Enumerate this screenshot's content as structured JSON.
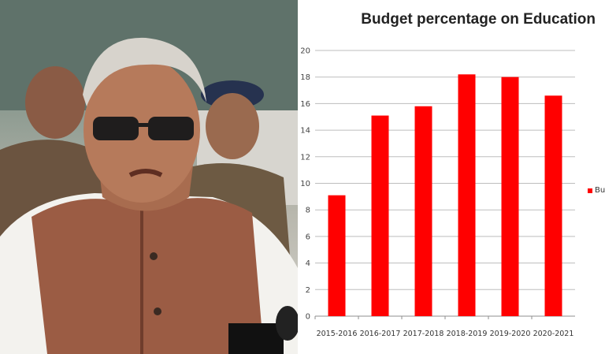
{
  "photo": {
    "description_icon": "politician-photo"
  },
  "chart_data": {
    "type": "bar",
    "title": "Budget percentage on Education",
    "categories": [
      "2015-2016",
      "2016-2017",
      "2017-2018",
      "2018-2019",
      "2019-2020",
      "2020-2021"
    ],
    "series": [
      {
        "name": "Bud",
        "values": [
          9.1,
          15.1,
          15.8,
          18.2,
          18.0,
          16.6
        ]
      }
    ],
    "ylim": [
      0,
      20
    ],
    "yticks": [
      0,
      2,
      4,
      6,
      8,
      10,
      12,
      14,
      16,
      18,
      20
    ],
    "grid": true,
    "legend_position": "right",
    "color": "#ff0000"
  }
}
